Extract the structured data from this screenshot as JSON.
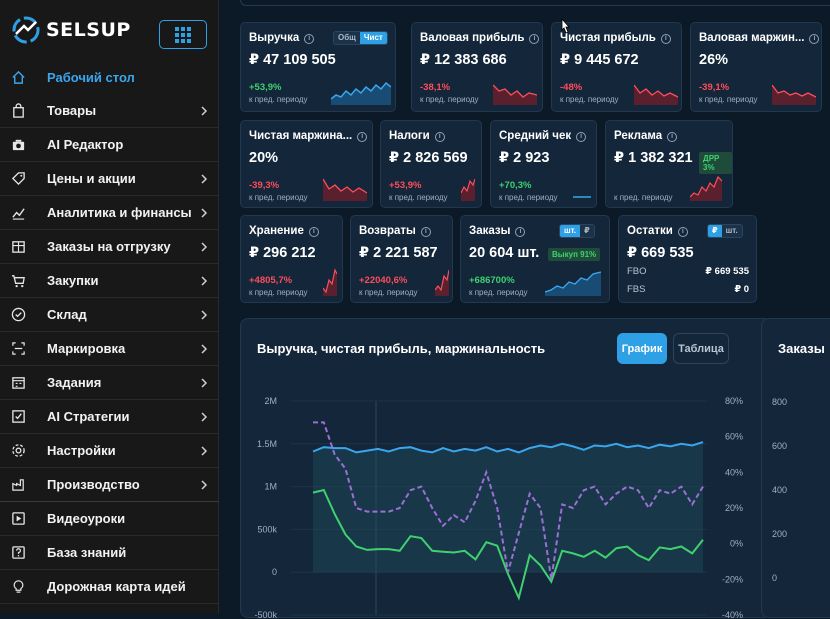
{
  "brand": {
    "name": "SELSUP"
  },
  "sidebar": {
    "items": [
      {
        "label": "Рабочий стол",
        "icon": "home-icon",
        "active": true,
        "chevron": false
      },
      {
        "label": "Товары",
        "icon": "bag-icon",
        "chevron": true
      },
      {
        "label": "AI Редактор",
        "icon": "camera-icon",
        "chevron": false
      },
      {
        "label": "Цены и акции",
        "icon": "tag-icon",
        "chevron": true
      },
      {
        "label": "Аналитика и финансы",
        "icon": "trend-icon",
        "chevron": true
      },
      {
        "label": "Заказы на отгрузку",
        "icon": "box-icon",
        "chevron": true
      },
      {
        "label": "Закупки",
        "icon": "cart-icon",
        "chevron": true
      },
      {
        "label": "Склад",
        "icon": "check-circle-icon",
        "chevron": true
      },
      {
        "label": "Маркировка",
        "icon": "scan-icon",
        "chevron": true
      },
      {
        "label": "Задания",
        "icon": "calendar-icon",
        "chevron": true
      },
      {
        "label": "AI Стратегии",
        "icon": "checklist-icon",
        "chevron": true
      },
      {
        "label": "Настройки",
        "icon": "gear-icon",
        "chevron": true
      },
      {
        "label": "Производство",
        "icon": "factory-icon",
        "chevron": true
      },
      {
        "label": "Видеоуроки",
        "icon": "play-icon",
        "chevron": false
      },
      {
        "label": "База знаний",
        "icon": "question-icon",
        "chevron": false
      },
      {
        "label": "Дорожная карта идей",
        "icon": "bulb-icon",
        "chevron": false
      }
    ]
  },
  "cards": {
    "revenue": {
      "title": "Выручка",
      "value": "₽ 47 109 505",
      "delta": "+53,9%",
      "period": "к пред. периоду",
      "toggle": [
        "Общ",
        "Чист"
      ]
    },
    "gross_profit": {
      "title": "Валовая прибыль",
      "value": "₽ 12 383 686",
      "delta": "-38,1%",
      "period": "к пред. периоду"
    },
    "net_profit": {
      "title": "Чистая прибыль",
      "value": "₽ 9 445 672",
      "delta": "-48%",
      "period": "к пред. периоду"
    },
    "gross_margin": {
      "title": "Валовая маржин...",
      "value": "26%",
      "delta": "-39,1%",
      "period": "к пред. периоду"
    },
    "net_margin": {
      "title": "Чистая маржина...",
      "value": "20%",
      "delta": "-39,3%",
      "period": "к пред. периоду"
    },
    "taxes": {
      "title": "Налоги",
      "value": "₽ 2 826 569",
      "delta": "+53,9%",
      "period": "к пред. периоду"
    },
    "avg_check": {
      "title": "Средний чек",
      "value": "₽ 2 923",
      "delta": "+70,3%",
      "period": "к пред. периоду"
    },
    "ads": {
      "title": "Реклама",
      "value": "₽ 1 382 321",
      "badge": "ДРР 3%",
      "period": "к пред. периоду"
    },
    "storage": {
      "title": "Хранение",
      "value": "₽ 296 212",
      "delta": "+4805,7%",
      "period": "к пред. периоду"
    },
    "returns": {
      "title": "Возвраты",
      "value": "₽ 2 221 587",
      "delta": "+22040,6%",
      "period": "к пред. периоду"
    },
    "orders": {
      "title": "Заказы",
      "value": "20 604 шт.",
      "delta": "+686700%",
      "period": "к пред. периоду",
      "badge": "Выкуп 91%",
      "toggle": [
        "шт.",
        "₽"
      ]
    },
    "stock": {
      "title": "Остатки",
      "value": "₽ 669 535",
      "toggle": [
        "₽",
        "шт."
      ],
      "fbo_label": "FBO",
      "fbo_value": "₽ 669 535",
      "fbs_label": "FBS",
      "fbs_value": "₽ 0"
    }
  },
  "chart_panel": {
    "title": "Выручка, чистая прибыль, маржинальность",
    "btn_chart": "График",
    "btn_table": "Таблица"
  },
  "chart_data": {
    "type": "line",
    "y_left_ticks": [
      "2M",
      "1.5M",
      "1M",
      "500k",
      "0",
      "-500k"
    ],
    "y_right_ticks": [
      "80%",
      "60%",
      "40%",
      "20%",
      "0%",
      "-20%",
      "-40%"
    ],
    "ylim_left": [
      -500000,
      2000000
    ],
    "ylim_right": [
      -40,
      80
    ],
    "series": [
      {
        "axis": "left",
        "color": "#3aa6ee",
        "style": "solid",
        "values": [
          1410000,
          1460000,
          1450000,
          1450000,
          1400000,
          1420000,
          1440000,
          1410000,
          1450000,
          1460000,
          1420000,
          1400000,
          1450000,
          1410000,
          1440000,
          1420000,
          1460000,
          1410000,
          1440000,
          1400000,
          1450000,
          1480000,
          1460000,
          1500000,
          1470000,
          1430000,
          1480000,
          1470000,
          1500000,
          1460000,
          1480000,
          1450000,
          1490000,
          1470000,
          1500000,
          1480000,
          1520000
        ]
      },
      {
        "axis": "left",
        "color": "#3fd16f",
        "style": "solid",
        "values": [
          930000,
          960000,
          680000,
          440000,
          300000,
          260000,
          270000,
          270000,
          250000,
          420000,
          400000,
          250000,
          240000,
          230000,
          250000,
          150000,
          350000,
          310000,
          -20000,
          -300000,
          200000,
          80000,
          -110000,
          250000,
          220000,
          180000,
          250000,
          170000,
          280000,
          300000,
          200000,
          140000,
          290000,
          270000,
          300000,
          220000,
          380000
        ]
      },
      {
        "axis": "right",
        "color": "#9b6fd6",
        "style": "dashed",
        "values": [
          68,
          68,
          50,
          42,
          20,
          18,
          18,
          18,
          20,
          30,
          32,
          20,
          10,
          16,
          12,
          24,
          40,
          20,
          -16,
          6,
          28,
          20,
          -20,
          22,
          20,
          30,
          32,
          22,
          28,
          32,
          30,
          20,
          30,
          28,
          32,
          22,
          32
        ]
      }
    ]
  },
  "right_panel": {
    "title": "Заказы",
    "ticks": [
      "800",
      "600",
      "400",
      "200",
      "0"
    ]
  }
}
